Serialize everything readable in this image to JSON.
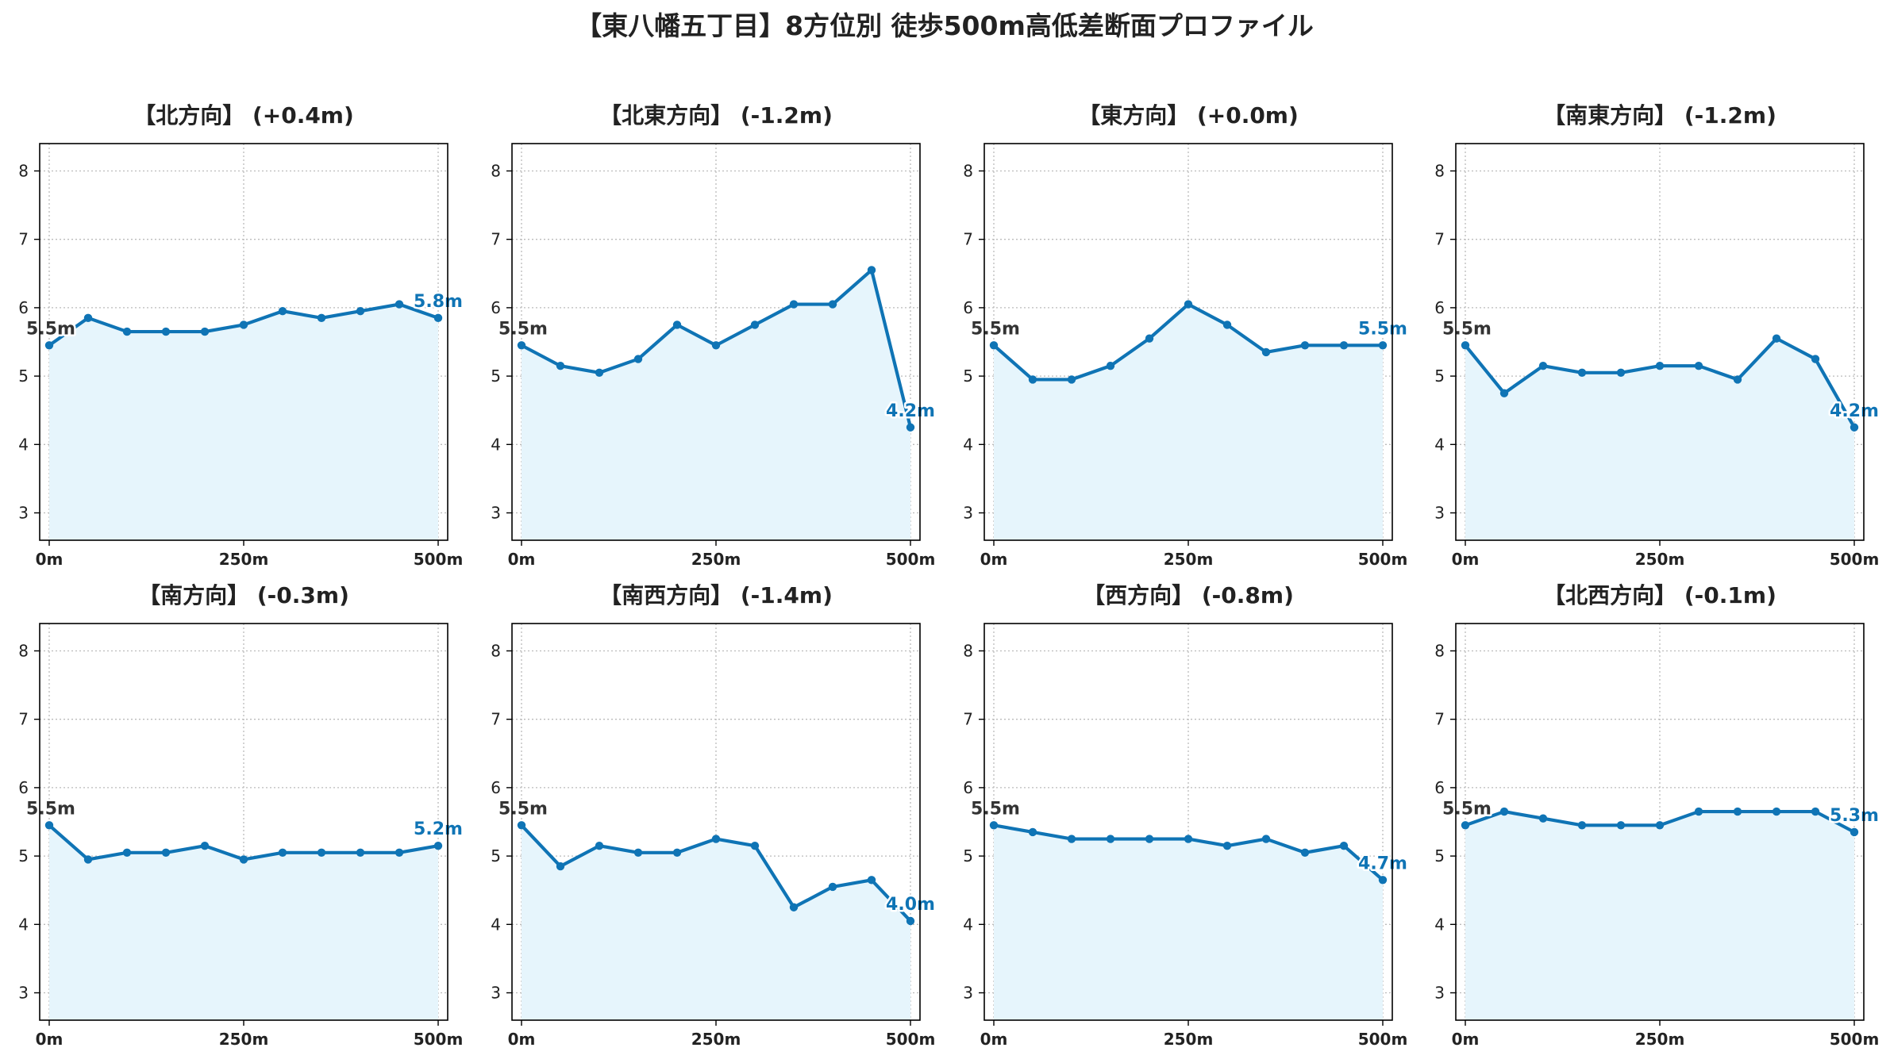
{
  "title": "【東八幡五丁目】8方位別 徒歩500m高低差断面プロファイル",
  "colors": {
    "line": "#0f74b5",
    "fill": "#e6f5fc",
    "grid": "#bbbbbb",
    "start_label": "#333333",
    "end_label": "#0f74b5"
  },
  "chart_data": [
    {
      "type": "area",
      "title": "【北方向】 (+0.4m)",
      "xlabel": "",
      "ylabel": "",
      "xlim": [
        0,
        500
      ],
      "ylim": [
        2.6,
        8.4
      ],
      "yticks": [
        3,
        4,
        5,
        6,
        7,
        8
      ],
      "xticks": [
        0,
        250,
        500
      ],
      "xtick_labels": [
        "0m",
        "250m",
        "500m"
      ],
      "grid": true,
      "x": [
        0,
        50,
        100,
        150,
        200,
        250,
        300,
        350,
        400,
        450,
        500
      ],
      "y": [
        5.45,
        5.85,
        5.65,
        5.65,
        5.65,
        5.75,
        5.95,
        5.85,
        5.95,
        6.05,
        5.85
      ],
      "start_label": "5.5m",
      "end_label": "5.8m"
    },
    {
      "type": "area",
      "title": "【北東方向】 (-1.2m)",
      "xlabel": "",
      "ylabel": "",
      "xlim": [
        0,
        500
      ],
      "ylim": [
        2.6,
        8.4
      ],
      "yticks": [
        3,
        4,
        5,
        6,
        7,
        8
      ],
      "xticks": [
        0,
        250,
        500
      ],
      "xtick_labels": [
        "0m",
        "250m",
        "500m"
      ],
      "grid": true,
      "x": [
        0,
        50,
        100,
        150,
        200,
        250,
        300,
        350,
        400,
        450,
        500
      ],
      "y": [
        5.45,
        5.15,
        5.05,
        5.25,
        5.75,
        5.45,
        5.75,
        6.05,
        6.05,
        6.55,
        4.25
      ],
      "start_label": "5.5m",
      "end_label": "4.2m"
    },
    {
      "type": "area",
      "title": "【東方向】 (+0.0m)",
      "xlabel": "",
      "ylabel": "",
      "xlim": [
        0,
        500
      ],
      "ylim": [
        2.6,
        8.4
      ],
      "yticks": [
        3,
        4,
        5,
        6,
        7,
        8
      ],
      "xticks": [
        0,
        250,
        500
      ],
      "xtick_labels": [
        "0m",
        "250m",
        "500m"
      ],
      "grid": true,
      "x": [
        0,
        50,
        100,
        150,
        200,
        250,
        300,
        350,
        400,
        450,
        500
      ],
      "y": [
        5.45,
        4.95,
        4.95,
        5.15,
        5.55,
        6.05,
        5.75,
        5.35,
        5.45,
        5.45,
        5.45
      ],
      "start_label": "5.5m",
      "end_label": "5.5m"
    },
    {
      "type": "area",
      "title": "【南東方向】 (-1.2m)",
      "xlabel": "",
      "ylabel": "",
      "xlim": [
        0,
        500
      ],
      "ylim": [
        2.6,
        8.4
      ],
      "yticks": [
        3,
        4,
        5,
        6,
        7,
        8
      ],
      "xticks": [
        0,
        250,
        500
      ],
      "xtick_labels": [
        "0m",
        "250m",
        "500m"
      ],
      "grid": true,
      "x": [
        0,
        50,
        100,
        150,
        200,
        250,
        300,
        350,
        400,
        450,
        500
      ],
      "y": [
        5.45,
        4.75,
        5.15,
        5.05,
        5.05,
        5.15,
        5.15,
        4.95,
        5.55,
        5.25,
        4.25
      ],
      "start_label": "5.5m",
      "end_label": "4.2m"
    },
    {
      "type": "area",
      "title": "【南方向】 (-0.3m)",
      "xlabel": "",
      "ylabel": "",
      "xlim": [
        0,
        500
      ],
      "ylim": [
        2.6,
        8.4
      ],
      "yticks": [
        3,
        4,
        5,
        6,
        7,
        8
      ],
      "xticks": [
        0,
        250,
        500
      ],
      "xtick_labels": [
        "0m",
        "250m",
        "500m"
      ],
      "grid": true,
      "x": [
        0,
        50,
        100,
        150,
        200,
        250,
        300,
        350,
        400,
        450,
        500
      ],
      "y": [
        5.45,
        4.95,
        5.05,
        5.05,
        5.15,
        4.95,
        5.05,
        5.05,
        5.05,
        5.05,
        5.15
      ],
      "start_label": "5.5m",
      "end_label": "5.2m"
    },
    {
      "type": "area",
      "title": "【南西方向】 (-1.4m)",
      "xlabel": "",
      "ylabel": "",
      "xlim": [
        0,
        500
      ],
      "ylim": [
        2.6,
        8.4
      ],
      "yticks": [
        3,
        4,
        5,
        6,
        7,
        8
      ],
      "xticks": [
        0,
        250,
        500
      ],
      "xtick_labels": [
        "0m",
        "250m",
        "500m"
      ],
      "grid": true,
      "x": [
        0,
        50,
        100,
        150,
        200,
        250,
        300,
        350,
        400,
        450,
        500
      ],
      "y": [
        5.45,
        4.85,
        5.15,
        5.05,
        5.05,
        5.25,
        5.15,
        4.25,
        4.55,
        4.65,
        4.05
      ],
      "start_label": "5.5m",
      "end_label": "4.0m"
    },
    {
      "type": "area",
      "title": "【西方向】 (-0.8m)",
      "xlabel": "",
      "ylabel": "",
      "xlim": [
        0,
        500
      ],
      "ylim": [
        2.6,
        8.4
      ],
      "yticks": [
        3,
        4,
        5,
        6,
        7,
        8
      ],
      "xticks": [
        0,
        250,
        500
      ],
      "xtick_labels": [
        "0m",
        "250m",
        "500m"
      ],
      "grid": true,
      "x": [
        0,
        50,
        100,
        150,
        200,
        250,
        300,
        350,
        400,
        450,
        500
      ],
      "y": [
        5.45,
        5.35,
        5.25,
        5.25,
        5.25,
        5.25,
        5.15,
        5.25,
        5.05,
        5.15,
        4.65
      ],
      "start_label": "5.5m",
      "end_label": "4.7m"
    },
    {
      "type": "area",
      "title": "【北西方向】 (-0.1m)",
      "xlabel": "",
      "ylabel": "",
      "xlim": [
        0,
        500
      ],
      "ylim": [
        2.6,
        8.4
      ],
      "yticks": [
        3,
        4,
        5,
        6,
        7,
        8
      ],
      "xticks": [
        0,
        250,
        500
      ],
      "xtick_labels": [
        "0m",
        "250m",
        "500m"
      ],
      "grid": true,
      "x": [
        0,
        50,
        100,
        150,
        200,
        250,
        300,
        350,
        400,
        450,
        500
      ],
      "y": [
        5.45,
        5.65,
        5.55,
        5.45,
        5.45,
        5.45,
        5.65,
        5.65,
        5.65,
        5.65,
        5.35
      ],
      "start_label": "5.5m",
      "end_label": "5.3m"
    }
  ]
}
